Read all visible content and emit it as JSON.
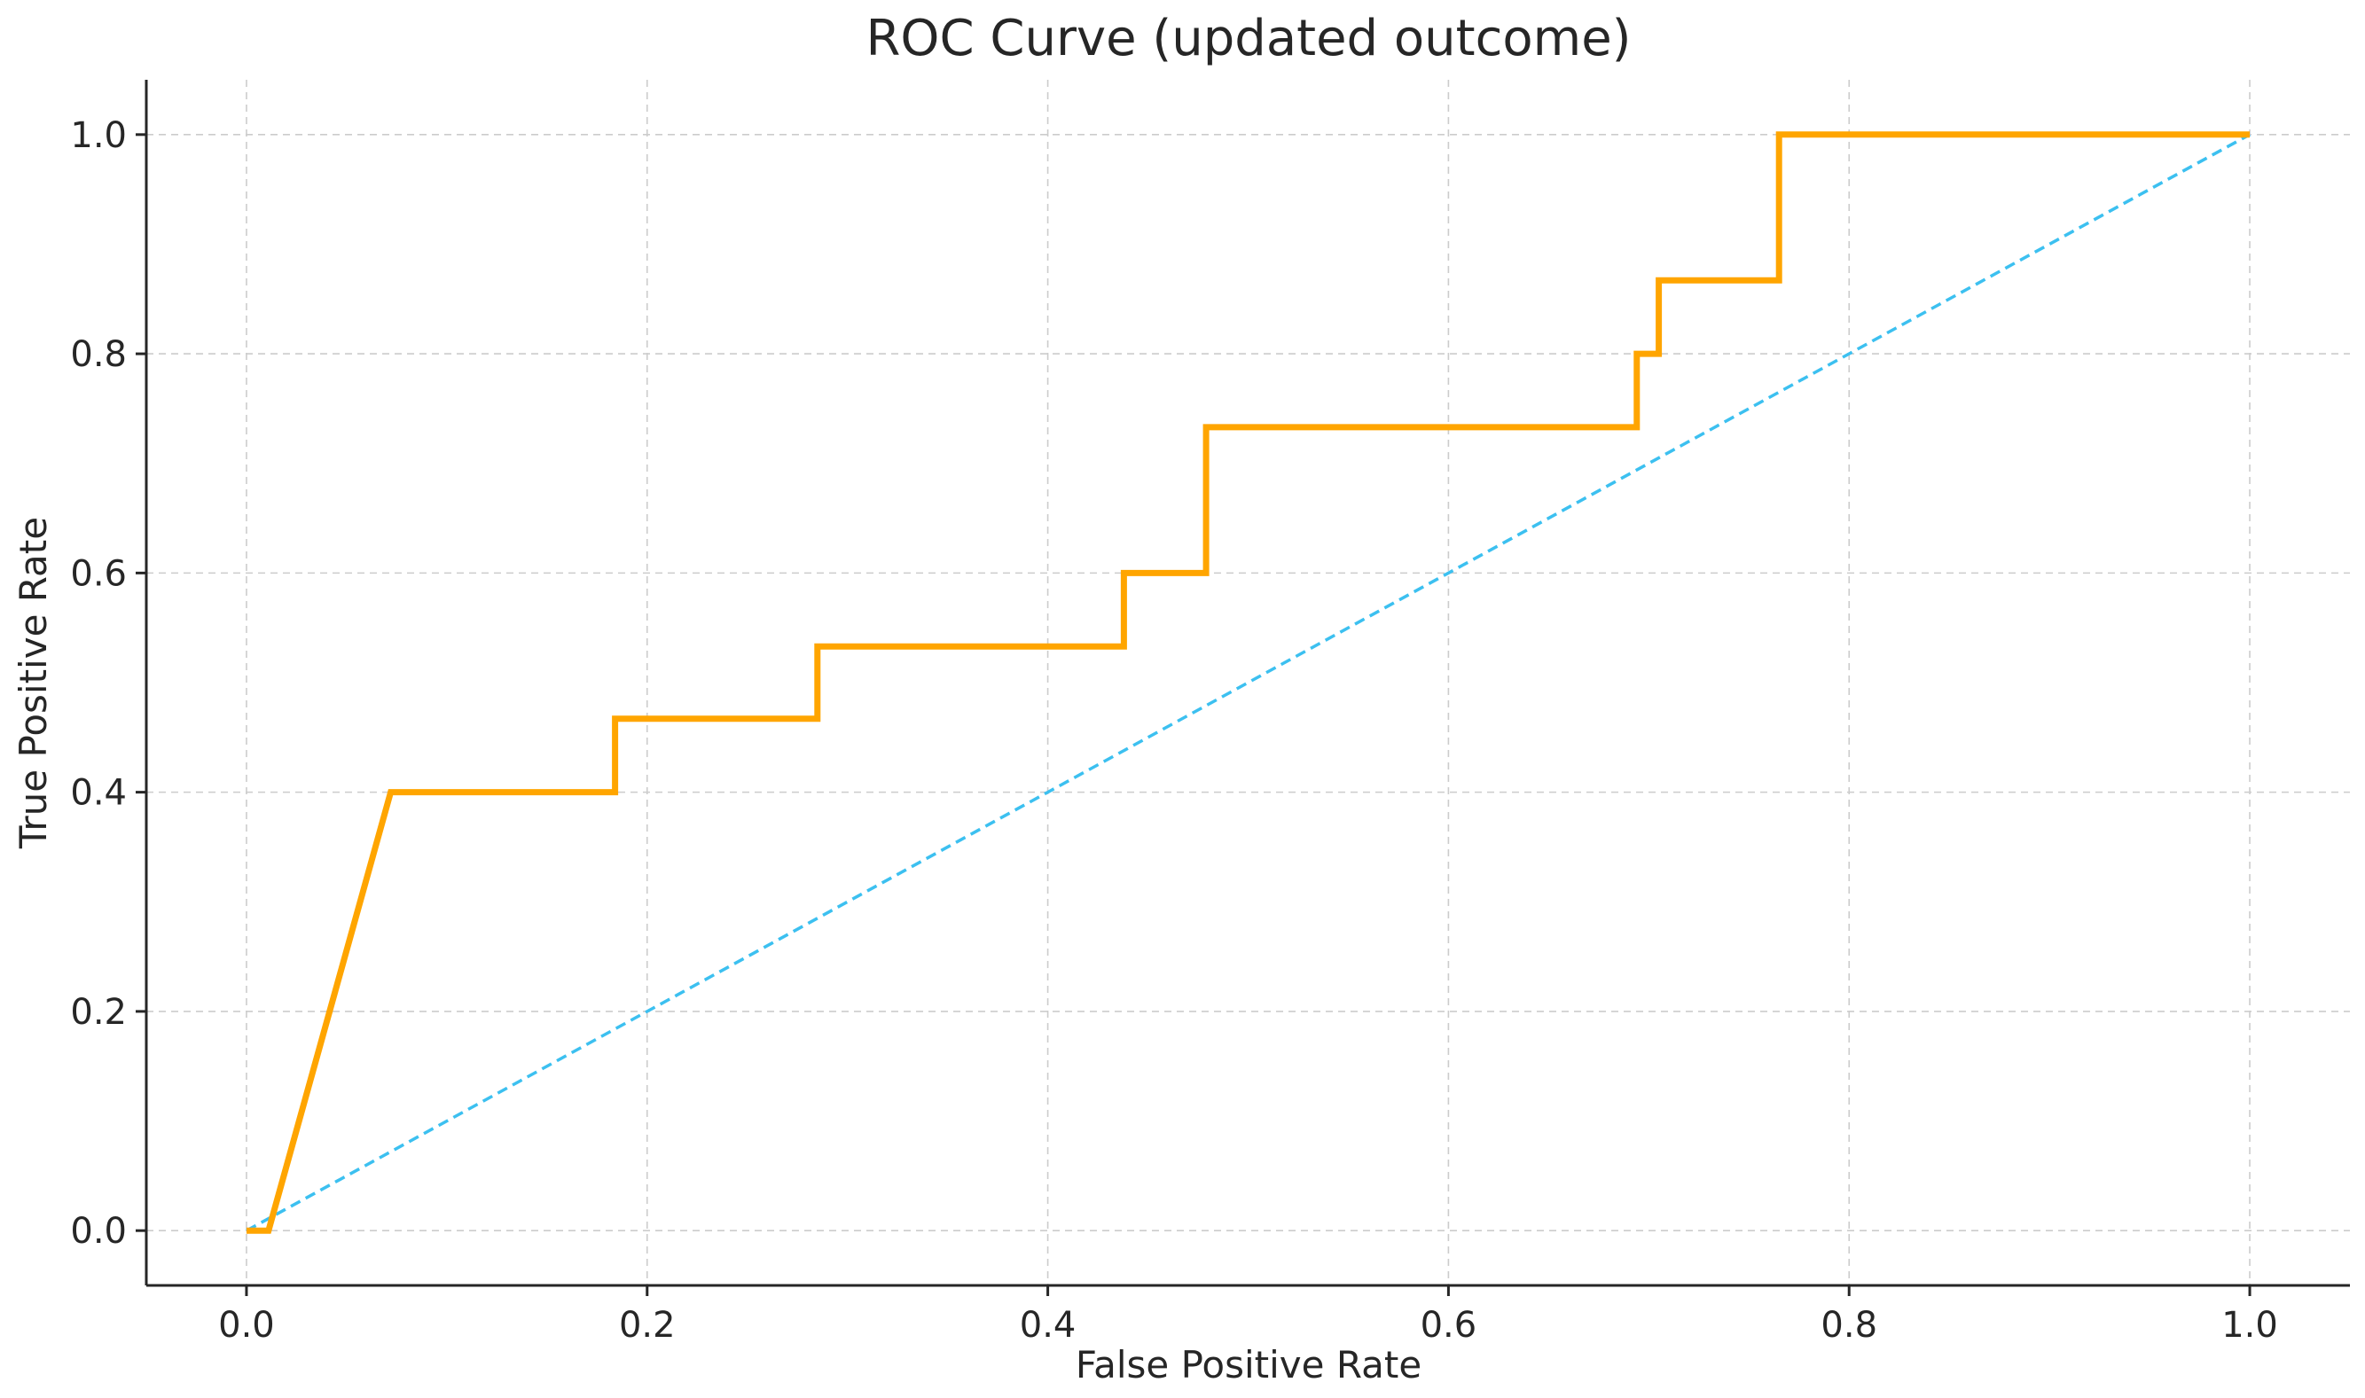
{
  "chart_data": {
    "type": "line",
    "title": "ROC Curve (updated outcome)",
    "xlabel": "False Positive Rate",
    "ylabel": "True Positive Rate",
    "xlim": [
      -0.05,
      1.05
    ],
    "ylim": [
      -0.05,
      1.05
    ],
    "grid": true,
    "x_ticks": [
      "0.0",
      "0.2",
      "0.4",
      "0.6",
      "0.8",
      "1.0"
    ],
    "y_ticks": [
      "0.0",
      "0.2",
      "0.4",
      "0.6",
      "0.8",
      "1.0"
    ],
    "series": [
      {
        "color": "#FFA500",
        "style": "solid",
        "x": [
          0.0,
          0.011,
          0.072,
          0.184,
          0.184,
          0.285,
          0.285,
          0.438,
          0.438,
          0.479,
          0.479,
          0.694,
          0.694,
          0.705,
          0.705,
          0.765,
          0.765,
          1.0
        ],
        "y": [
          0.0,
          0.0,
          0.4,
          0.4,
          0.467,
          0.467,
          0.533,
          0.533,
          0.6,
          0.6,
          0.733,
          0.733,
          0.8,
          0.8,
          0.867,
          0.867,
          1.0,
          1.0
        ]
      },
      {
        "color": "#3CC0F0",
        "style": "dashed",
        "x": [
          0.0,
          1.0
        ],
        "y": [
          0.0,
          1.0
        ]
      }
    ]
  }
}
